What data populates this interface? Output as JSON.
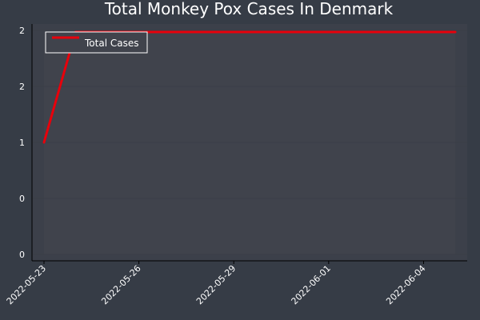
{
  "chart_data": {
    "type": "line",
    "title": "Total Monkey Pox Cases In Denmark",
    "xlabel": "",
    "ylabel": "",
    "x_tick_labels": [
      "2022-05-23",
      "2022-05-26",
      "2022-05-29",
      "2022-06-01",
      "2022-06-04"
    ],
    "y_tick_labels": [
      "0",
      "0",
      "1",
      "2",
      "2"
    ],
    "ylim": [
      0,
      2
    ],
    "grid": true,
    "legend_position": "top-left",
    "series": [
      {
        "name": "Total Cases",
        "color": "#e8000b",
        "x": [
          "2022-05-23",
          "2022-05-24",
          "2022-05-25",
          "2022-05-26",
          "2022-05-27",
          "2022-05-28",
          "2022-05-29",
          "2022-05-30",
          "2022-05-31",
          "2022-06-01",
          "2022-06-02",
          "2022-06-03",
          "2022-06-04",
          "2022-06-05"
        ],
        "values": [
          1,
          2,
          2,
          2,
          2,
          2,
          2,
          2,
          2,
          2,
          2,
          2,
          2,
          2
        ]
      }
    ]
  },
  "colors": {
    "page_background": "#363c46",
    "plot_background": "#3c404a",
    "inner_background": "#40434c",
    "axis": "#000000",
    "text": "#ffffff",
    "line": "#e8000b"
  }
}
